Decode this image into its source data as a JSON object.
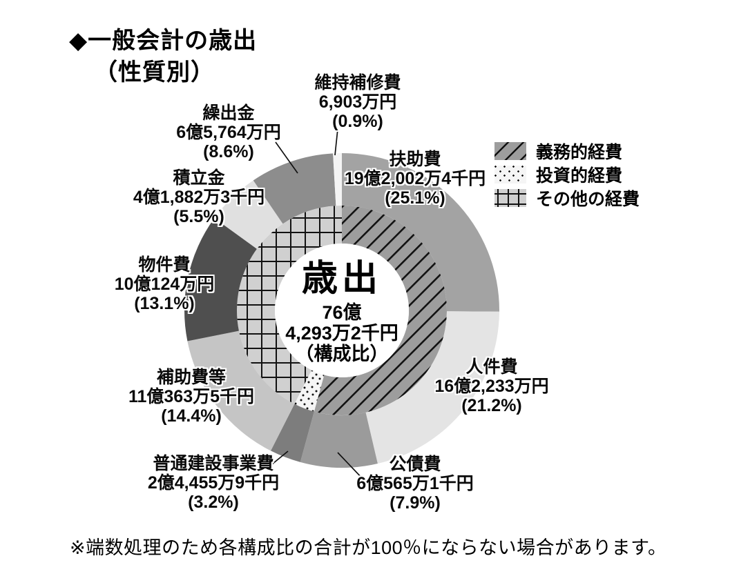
{
  "title": {
    "line1": "◆一般会計の歳出",
    "line2": "（性質別）"
  },
  "center": {
    "heading": "歳出",
    "line1": "76億",
    "line2": "4,293万2千円",
    "line3": "（構成比）"
  },
  "legend": {
    "items": [
      {
        "key": "obligatory-expenses",
        "label": "義務的経費",
        "pattern": "diagonal-hatch",
        "swatch_bg": "#9d9d9d"
      },
      {
        "key": "investment-expenses",
        "label": "投資的経費",
        "pattern": "dots",
        "swatch_bg": "#f5f5f5"
      },
      {
        "key": "other-expenses",
        "label": "その他の経費",
        "pattern": "grid",
        "swatch_bg": "#d0d0d0"
      }
    ]
  },
  "note": "※端数処理のため各構成比の合計が100％にならない場合があります。",
  "chart_data": {
    "type": "pie",
    "subtype": "double-ring-donut",
    "title": "一般会計の歳出（性質別）",
    "center_label": "歳出",
    "center_total": "76億4,293万2千円",
    "center_note": "（構成比）",
    "start": "12-oclock",
    "direction": "clockwise",
    "percent_sum_note": "rounding-may-not-total-100",
    "segments": [
      {
        "name": "扶助費",
        "amount": "19億2,002万4千円",
        "percent": 25.1,
        "percent_label": "(25.1%)",
        "group": "義務的経費",
        "color": "#a3a3a3"
      },
      {
        "name": "人件費",
        "amount": "16億2,233万円",
        "percent": 21.2,
        "percent_label": "(21.2%)",
        "group": "義務的経費",
        "color": "#e4e4e4"
      },
      {
        "name": "公債費",
        "amount": "6億565万1千円",
        "percent": 7.9,
        "percent_label": "(7.9%)",
        "group": "義務的経費",
        "color": "#9b9b9b"
      },
      {
        "name": "普通建設事業費",
        "amount": "2億4,455万9千円",
        "percent": 3.2,
        "percent_label": "(3.2%)",
        "group": "投資的経費",
        "color": "#7d7d7d"
      },
      {
        "name": "補助費等",
        "amount": "11億363万5千円",
        "percent": 14.4,
        "percent_label": "(14.4%)",
        "group": "その他の経費",
        "color": "#c5c5c5"
      },
      {
        "name": "物件費",
        "amount": "10億124万円",
        "percent": 13.1,
        "percent_label": "(13.1%)",
        "group": "その他の経費",
        "color": "#4f4f4f"
      },
      {
        "name": "積立金",
        "amount": "4億1,882万3千円",
        "percent": 5.5,
        "percent_label": "(5.5%)",
        "group": "その他の経費",
        "color": "#e0e0e0"
      },
      {
        "name": "繰出金",
        "amount": "6億5,764万円",
        "percent": 8.6,
        "percent_label": "(8.6%)",
        "group": "その他の経費",
        "color": "#8d8d8d"
      },
      {
        "name": "維持補修費",
        "amount": "6,903万円",
        "percent": 0.9,
        "percent_label": "(0.9%)",
        "group": "その他の経費",
        "color": "#f4f4f4"
      }
    ],
    "inner_groups": [
      {
        "name": "義務的経費",
        "percent": 54.2,
        "pattern": "diagonal-hatch",
        "bg": "#9d9d9d"
      },
      {
        "name": "投資的経費",
        "percent": 3.2,
        "pattern": "dots",
        "bg": "#f5f5f5"
      },
      {
        "name": "その他の経費",
        "percent": 42.5,
        "pattern": "grid",
        "bg": "#d0d0d0"
      }
    ]
  }
}
